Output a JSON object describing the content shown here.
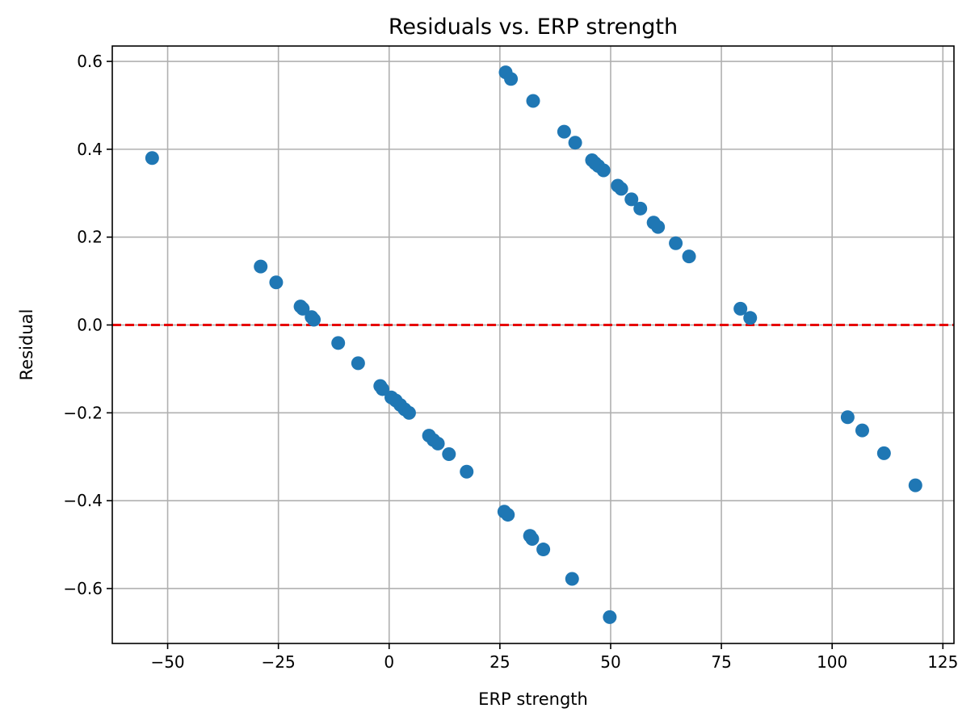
{
  "chart_data": {
    "type": "scatter",
    "title": "Residuals vs. ERP strength",
    "xlabel": "ERP strength",
    "ylabel": "Residual",
    "xlim": [
      -62.5,
      127.5
    ],
    "ylim": [
      -0.725,
      0.635
    ],
    "xticks": [
      -50,
      -25,
      0,
      25,
      50,
      75,
      100,
      125
    ],
    "xtick_labels": [
      "−50",
      "−25",
      "0",
      "25",
      "50",
      "75",
      "100",
      "125"
    ],
    "yticks": [
      -0.6,
      -0.4,
      -0.2,
      0.0,
      0.2,
      0.4,
      0.6
    ],
    "ytick_labels": [
      "−0.6",
      "−0.4",
      "−0.2",
      "0.0",
      "0.2",
      "0.4",
      "0.6"
    ],
    "grid": true,
    "point_color": "#1f77b4",
    "reference_line": {
      "y": 0.0,
      "color": "#e60000",
      "style": "dashed"
    },
    "series": [
      {
        "x": [
          -53.5,
          -29,
          -25.5,
          -20,
          -19.5,
          -17.5,
          -17,
          -11.5,
          -7,
          -2,
          -1.5,
          0.5,
          1.5,
          2.5,
          3.5,
          4.5,
          9,
          10,
          11,
          13.5,
          17.5,
          26,
          26.8,
          31.8,
          32.3,
          34.8,
          41.3,
          49.8
        ],
        "y": [
          0.38,
          0.133,
          0.097,
          0.042,
          0.037,
          0.018,
          0.012,
          -0.041,
          -0.087,
          -0.139,
          -0.146,
          -0.165,
          -0.172,
          -0.182,
          -0.192,
          -0.2,
          -0.252,
          -0.262,
          -0.27,
          -0.294,
          -0.334,
          -0.425,
          -0.432,
          -0.48,
          -0.487,
          -0.511,
          -0.578,
          -0.665
        ]
      },
      {
        "x": [
          26.3,
          27.5,
          32.5,
          39.5,
          42,
          45.8,
          46.5,
          47.2,
          48.4,
          51.6,
          52.4,
          54.7,
          56.7,
          59.7,
          60.7,
          64.7,
          67.7,
          79.3,
          81.5
        ],
        "y": [
          0.575,
          0.56,
          0.51,
          0.44,
          0.415,
          0.375,
          0.368,
          0.362,
          0.352,
          0.317,
          0.31,
          0.286,
          0.265,
          0.233,
          0.223,
          0.186,
          0.156,
          0.037,
          0.016
        ]
      },
      {
        "x": [
          103.5,
          106.8,
          111.7,
          118.8
        ],
        "y": [
          -0.21,
          -0.24,
          -0.292,
          -0.365
        ]
      }
    ]
  }
}
